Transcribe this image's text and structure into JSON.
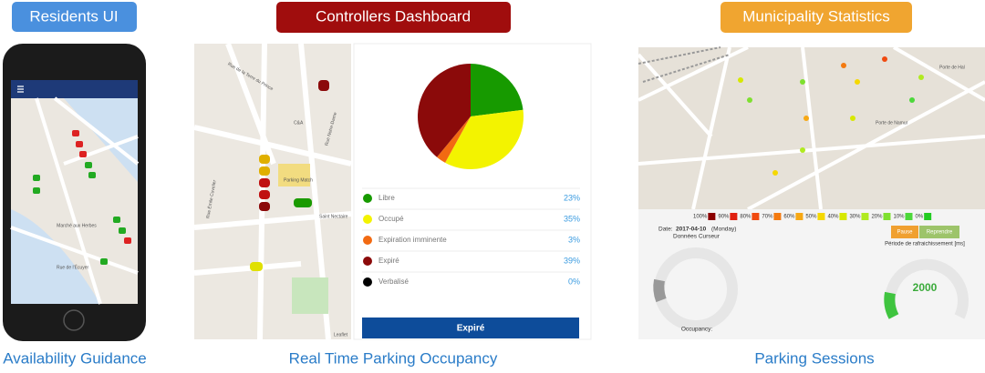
{
  "residents": {
    "badge": "Residents UI",
    "caption": "Availability Guidance",
    "map_labels": [
      "Marché aux Herbes",
      "Rue de l'Écuyer"
    ]
  },
  "controllers": {
    "badge": "Controllers Dashboard",
    "caption": "Real Time Parking Occupancy",
    "map_labels": [
      "Rue de la Terre du Prince",
      "Rue Notre-Dame",
      "C&A",
      "Parking Match",
      "Saint Nectaire",
      "Rue Émile Cuvelier",
      "Leaflet"
    ],
    "pie": {
      "type": "pie",
      "categories": [
        "Libre",
        "Occupé",
        "Expiration imminente",
        "Expiré",
        "Verbalisé"
      ],
      "values": [
        23,
        35,
        3,
        39,
        0
      ],
      "value_labels": [
        "23%",
        "35%",
        "3%",
        "39%",
        "0%"
      ],
      "colors": [
        "#179a00",
        "#f3f300",
        "#f26a12",
        "#8b0a0a",
        "#000000"
      ]
    },
    "button": "Expiré"
  },
  "municipality": {
    "badge": "Municipality Statistics",
    "caption": "Parking Sessions",
    "map_labels": [
      "Porte de Hal",
      "Porte de Namur"
    ],
    "scale": {
      "labels": [
        "100%",
        "90%",
        "80%",
        "70%",
        "60%",
        "50%",
        "40%",
        "30%",
        "20%",
        "10%",
        "0%"
      ],
      "colors": [
        "#8b0000",
        "#e02010",
        "#f04a10",
        "#f47a10",
        "#f7a814",
        "#f5d800",
        "#d7e800",
        "#b0ea20",
        "#7ee030",
        "#4cd83a",
        "#22cc22"
      ]
    },
    "date_prefix": "Date:",
    "date": "2017-04-10",
    "weekday": "(Monday)",
    "cursor": "Données Curseur",
    "pause": "Pause",
    "resume": "Reprendre",
    "refresh": "Période de rafraichissement [ms]",
    "refresh_value": "2000",
    "occupancy": "Occupancy:"
  }
}
